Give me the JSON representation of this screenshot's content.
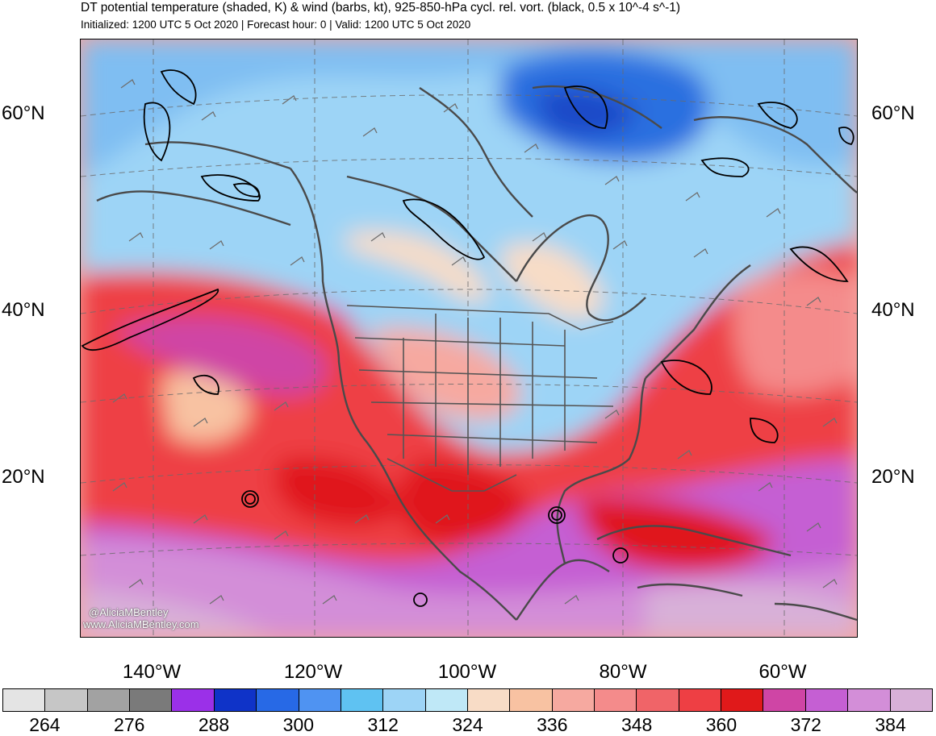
{
  "title": "DT potential temperature (shaded, K) & wind (barbs, kt), 925-850-hPa cycl. rel. vort. (black, 0.5 x 10^-4 s^-1)",
  "subtitle": "Initialized: 1200 UTC 5 Oct 2020 | Forecast hour: 0 | Valid: 1200 UTC 5 Oct 2020",
  "lat_labels": [
    "60°N",
    "40°N",
    "20°N"
  ],
  "lon_labels": [
    "140°W",
    "120°W",
    "100°W",
    "80°W",
    "60°W"
  ],
  "credit": {
    "handle": "@AliciaMBentley",
    "url": "www.AliciaMBentley.com"
  },
  "colorbar": {
    "colors": [
      "#e4e4e4",
      "#c6c6c6",
      "#a2a2a2",
      "#7a7a7a",
      "#9b30e8",
      "#0f33c8",
      "#2769e6",
      "#4f93f2",
      "#5fc2f2",
      "#9dd4f6",
      "#bfe8f7",
      "#f8dcc6",
      "#f8c2a2",
      "#f6a9a0",
      "#f48b8b",
      "#f06468",
      "#ee3f44",
      "#e0191a",
      "#cf45a5",
      "#c55fd3",
      "#d38ed8",
      "#d8b0d8"
    ],
    "labels": [
      "264",
      "276",
      "288",
      "300",
      "312",
      "324",
      "336",
      "348",
      "360",
      "372",
      "384"
    ]
  },
  "map": {
    "region": "North America and adjacent Pacific and Atlantic oceans",
    "field_colors": {
      "cold_high_latitude": "#2a6fe0",
      "cool_polar": "#9dd4f6",
      "mild_continental": "#f8dcc6",
      "warm_subtropical": "#ee3f44",
      "tropical": "#c55fd3",
      "deep_tropical": "#d8b0d8"
    },
    "overlays": [
      "wind barbs",
      "vorticity contours",
      "coastlines",
      "state and country borders",
      "lat/lon grid"
    ]
  }
}
